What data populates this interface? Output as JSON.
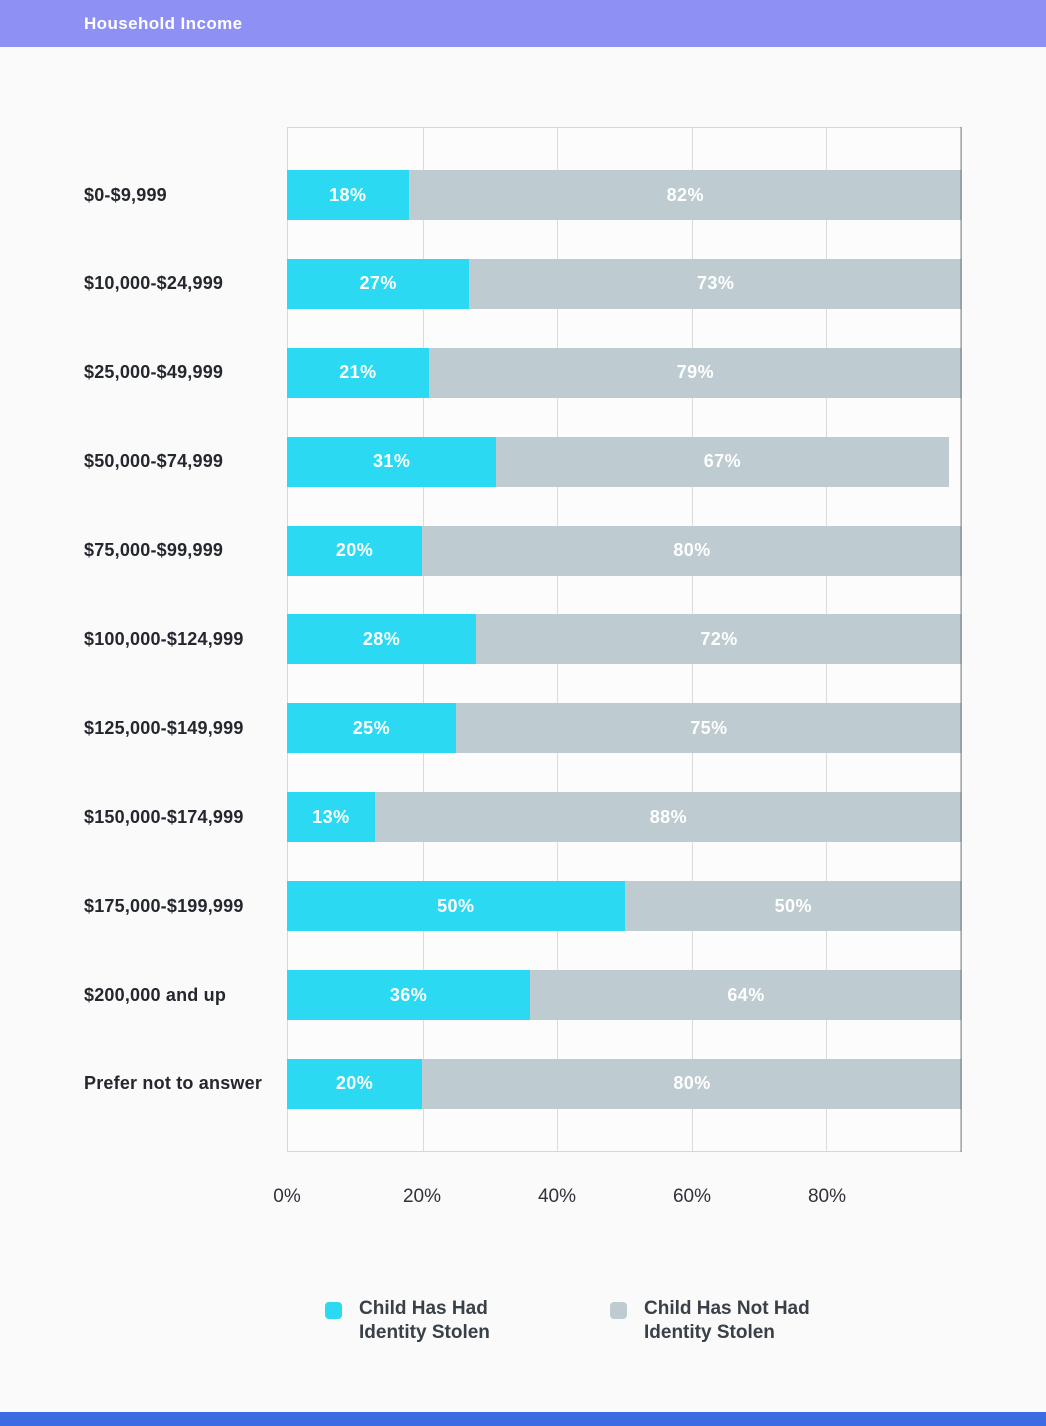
{
  "header": {
    "title": "Household Income"
  },
  "colors": {
    "header_bg": "#8F90F3",
    "page_bg": "#FAFAFB",
    "grid": "#DBDBDD",
    "series_had": "#2BD9F3",
    "series_not": "#BECBD0",
    "bar_label_text": "#FFFFFF",
    "category_text": "#24272D",
    "axis_text": "#2F323A",
    "legend_text": "#3A4047",
    "footer_accent": "#3D6BE4"
  },
  "chart_data": {
    "type": "bar",
    "orientation": "horizontal",
    "stacked": true,
    "title": "Household Income",
    "categories": [
      "$0-$9,999",
      "$10,000-$24,999",
      "$25,000-$49,999",
      "$50,000-$74,999",
      "$75,000-$99,999",
      "$100,000-$124,999",
      "$125,000-$149,999",
      "$150,000-$174,999",
      "$175,000-$199,999",
      "$200,000 and up",
      "Prefer not to answer"
    ],
    "series": [
      {
        "name": "Child Has Had Identity Stolen",
        "color": "#2BD9F3",
        "values": [
          18,
          27,
          21,
          31,
          20,
          28,
          25,
          13,
          50,
          36,
          20
        ]
      },
      {
        "name": "Child Has Not Had Identity Stolen",
        "color": "#BECBD0",
        "values": [
          82,
          73,
          79,
          67,
          80,
          72,
          75,
          88,
          50,
          64,
          80
        ]
      }
    ],
    "value_label_suffix": "%",
    "xlim": [
      0,
      100
    ],
    "xticks": [
      0,
      20,
      40,
      60,
      80
    ],
    "xtick_labels": [
      "0%",
      "20%",
      "40%",
      "60%",
      "80%"
    ],
    "grid": "vertical",
    "legend_position": "bottom"
  },
  "legend": {
    "items": [
      {
        "lines": [
          "Child Has Had",
          "Identity Stolen"
        ]
      },
      {
        "lines": [
          "Child Has Not Had",
          "Identity Stolen"
        ]
      }
    ]
  }
}
